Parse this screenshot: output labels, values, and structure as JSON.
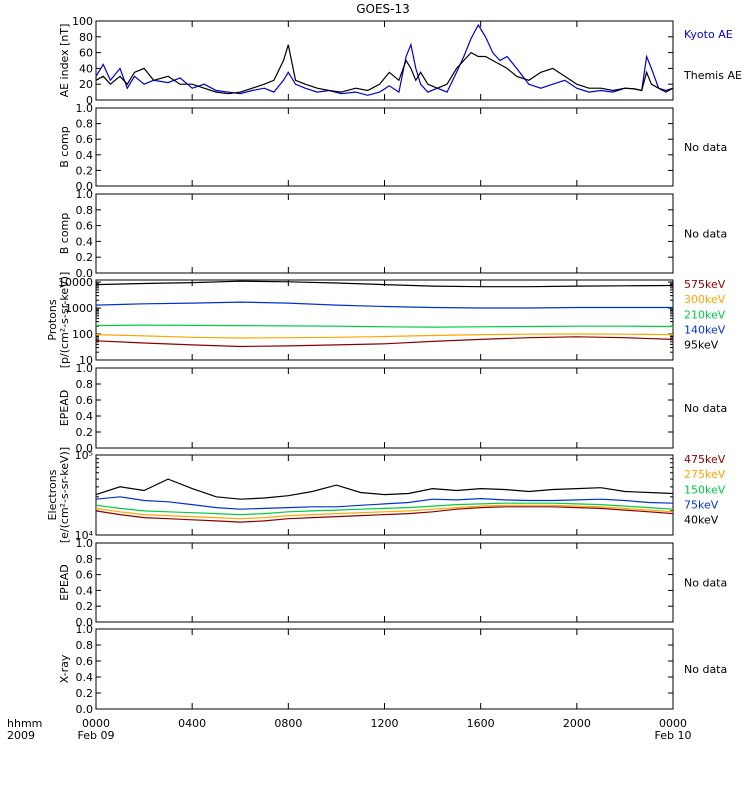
{
  "title": "GOES-13",
  "time_axis": {
    "corner_labels": [
      "hhmm",
      "2009"
    ],
    "ticks": [
      {
        "hour": 0,
        "label": "0000",
        "sublabel": "Feb 09"
      },
      {
        "hour": 4,
        "label": "0400",
        "sublabel": ""
      },
      {
        "hour": 8,
        "label": "0800",
        "sublabel": ""
      },
      {
        "hour": 12,
        "label": "1200",
        "sublabel": ""
      },
      {
        "hour": 16,
        "label": "1600",
        "sublabel": ""
      },
      {
        "hour": 20,
        "label": "2000",
        "sublabel": ""
      },
      {
        "hour": 24,
        "label": "0000",
        "sublabel": "Feb 10"
      }
    ],
    "range_hours": [
      0,
      24
    ]
  },
  "chart_data": [
    {
      "type": "line",
      "id": "ae",
      "ylabel": "AE index [nT]",
      "ylim": [
        0,
        100
      ],
      "yticks": [
        "0",
        "20",
        "40",
        "60",
        "80",
        "100"
      ],
      "scale": "linear",
      "series": [
        {
          "name": "Kyoto AE",
          "color": "#0000cc",
          "x": [
            0,
            0.3,
            0.6,
            1,
            1.3,
            1.6,
            2,
            2.4,
            3,
            3.5,
            4,
            4.5,
            5,
            5.5,
            6,
            6.5,
            7,
            7.4,
            7.8,
            8,
            8.3,
            8.7,
            9.2,
            9.7,
            10.2,
            10.8,
            11.3,
            11.8,
            12.2,
            12.6,
            12.9,
            13.1,
            13.3,
            13.5,
            13.8,
            14.2,
            14.6,
            15,
            15.3,
            15.6,
            15.9,
            16.2,
            16.5,
            16.8,
            17.1,
            17.5,
            18,
            18.5,
            19,
            19.5,
            20,
            20.5,
            21,
            21.5,
            22,
            22.4,
            22.7,
            22.9,
            23.1,
            23.4,
            23.7,
            24
          ],
          "y": [
            30,
            45,
            25,
            40,
            15,
            30,
            20,
            25,
            22,
            28,
            15,
            20,
            12,
            10,
            8,
            12,
            15,
            10,
            25,
            35,
            20,
            15,
            10,
            12,
            8,
            10,
            6,
            10,
            18,
            10,
            55,
            70,
            40,
            20,
            10,
            15,
            10,
            35,
            55,
            78,
            95,
            80,
            60,
            50,
            55,
            40,
            20,
            15,
            20,
            25,
            15,
            10,
            12,
            10,
            15,
            14,
            12,
            55,
            40,
            15,
            12,
            15
          ]
        },
        {
          "name": "Themis AE",
          "color": "#000000",
          "x": [
            0,
            0.3,
            0.6,
            1,
            1.3,
            1.6,
            2,
            2.4,
            3,
            3.5,
            4,
            4.5,
            5,
            5.5,
            6,
            6.5,
            7,
            7.4,
            7.8,
            8,
            8.3,
            8.7,
            9.2,
            9.7,
            10.2,
            10.8,
            11.3,
            11.8,
            12.2,
            12.6,
            12.9,
            13.1,
            13.3,
            13.5,
            13.8,
            14.2,
            14.6,
            15,
            15.3,
            15.6,
            15.9,
            16.2,
            16.5,
            16.8,
            17.1,
            17.5,
            18,
            18.5,
            19,
            19.5,
            20,
            20.5,
            21,
            21.5,
            22,
            22.4,
            22.7,
            22.9,
            23.1,
            23.4,
            23.7,
            24
          ],
          "y": [
            25,
            30,
            20,
            30,
            20,
            35,
            40,
            25,
            30,
            20,
            20,
            15,
            10,
            8,
            10,
            15,
            20,
            25,
            50,
            70,
            25,
            20,
            15,
            12,
            10,
            15,
            12,
            20,
            35,
            25,
            50,
            40,
            25,
            35,
            20,
            15,
            20,
            40,
            50,
            60,
            55,
            55,
            50,
            45,
            40,
            30,
            25,
            35,
            40,
            30,
            20,
            15,
            15,
            12,
            15,
            14,
            12,
            35,
            20,
            15,
            10,
            15
          ]
        }
      ]
    },
    {
      "type": "line",
      "id": "bcomp1",
      "ylabel": "B comp",
      "ylim": [
        0,
        1.0
      ],
      "yticks": [
        "0.0",
        "0.2",
        "0.4",
        "0.6",
        "0.8",
        "1.0"
      ],
      "scale": "linear",
      "series": [],
      "status_text": "No data"
    },
    {
      "type": "line",
      "id": "bcomp2",
      "ylabel": "B comp",
      "ylim": [
        0,
        1.0
      ],
      "yticks": [
        "0.0",
        "0.2",
        "0.4",
        "0.6",
        "0.8",
        "1.0"
      ],
      "scale": "linear",
      "series": [],
      "status_text": "No data"
    },
    {
      "type": "line",
      "id": "protons",
      "ylabel": "Protons",
      "ylabel2": "[p/(cm²-s-sr-keV)]",
      "ylim": [
        10,
        12000
      ],
      "scale": "log",
      "yticks": [
        {
          "value": 10,
          "label": "10"
        },
        {
          "value": 100,
          "label": "100"
        },
        {
          "value": 1000,
          "label": "1000"
        },
        {
          "value": 10000,
          "label": "10000"
        }
      ],
      "series": [
        {
          "name": "575keV",
          "color": "#8b0000",
          "x": [
            0,
            2,
            4,
            6,
            8,
            10,
            12,
            14,
            16,
            18,
            20,
            22,
            24
          ],
          "y": [
            55,
            45,
            38,
            33,
            35,
            38,
            42,
            52,
            62,
            72,
            78,
            72,
            62
          ]
        },
        {
          "name": "300keV",
          "color": "#ffa500",
          "x": [
            0,
            2,
            4,
            6,
            8,
            10,
            12,
            14,
            16,
            18,
            20,
            22,
            24
          ],
          "y": [
            95,
            85,
            75,
            70,
            72,
            75,
            80,
            88,
            95,
            98,
            100,
            98,
            95
          ]
        },
        {
          "name": "210keV",
          "color": "#00cc44",
          "x": [
            0,
            2,
            4,
            6,
            8,
            10,
            12,
            14,
            16,
            18,
            20,
            22,
            24
          ],
          "y": [
            210,
            220,
            215,
            210,
            205,
            200,
            190,
            185,
            190,
            195,
            200,
            200,
            195
          ]
        },
        {
          "name": "140keV",
          "color": "#0033cc",
          "x": [
            0,
            2,
            4,
            6,
            8,
            10,
            12,
            14,
            16,
            18,
            20,
            22,
            24
          ],
          "y": [
            1300,
            1450,
            1550,
            1700,
            1550,
            1300,
            1150,
            1050,
            1000,
            1000,
            1050,
            1050,
            1050
          ]
        },
        {
          "name": "95keV",
          "color": "#000000",
          "x": [
            0,
            2,
            4,
            6,
            8,
            10,
            12,
            14,
            16,
            18,
            20,
            22,
            24
          ],
          "y": [
            8000,
            8800,
            9500,
            10800,
            10200,
            9200,
            8000,
            7000,
            6600,
            6600,
            7000,
            7200,
            7400
          ]
        }
      ]
    },
    {
      "type": "line",
      "id": "epead1",
      "ylabel": "EPEAD",
      "ylim": [
        0,
        1.0
      ],
      "yticks": [
        "0.0",
        "0.2",
        "0.4",
        "0.6",
        "0.8",
        "1.0"
      ],
      "scale": "linear",
      "series": [],
      "status_text": "No data"
    },
    {
      "type": "line",
      "id": "electrons",
      "ylabel": "Electrons",
      "ylabel2": "[e/(cm²-s-sr-keV)]",
      "ylim": [
        10000,
        100000
      ],
      "scale": "log",
      "yticks": [
        {
          "value": 10000,
          "label": "10⁴"
        },
        {
          "value": 100000,
          "label": "10⁵"
        }
      ],
      "series": [
        {
          "name": "475keV",
          "color": "#8b0000",
          "x": [
            0,
            1,
            2,
            3,
            4,
            5,
            6,
            7,
            8,
            9,
            10,
            11,
            12,
            13,
            14,
            15,
            16,
            17,
            18,
            19,
            20,
            21,
            22,
            23,
            24
          ],
          "y": [
            20000,
            18000,
            16500,
            16000,
            15500,
            15000,
            14500,
            15000,
            16000,
            16500,
            17000,
            17500,
            18000,
            18500,
            19500,
            21000,
            22000,
            22500,
            22500,
            22500,
            22000,
            21500,
            20500,
            19500,
            18500
          ]
        },
        {
          "name": "275keV",
          "color": "#ffa500",
          "x": [
            0,
            1,
            2,
            3,
            4,
            5,
            6,
            7,
            8,
            9,
            10,
            11,
            12,
            13,
            14,
            15,
            16,
            17,
            18,
            19,
            20,
            21,
            22,
            23,
            24
          ],
          "y": [
            21500,
            19500,
            18000,
            17500,
            17000,
            16500,
            16000,
            16500,
            17500,
            18000,
            18500,
            19000,
            19500,
            20000,
            21000,
            22000,
            23000,
            23500,
            23500,
            23500,
            23000,
            22500,
            21500,
            20500,
            19500
          ]
        },
        {
          "name": "150keV",
          "color": "#00cc44",
          "x": [
            0,
            1,
            2,
            3,
            4,
            5,
            6,
            7,
            8,
            9,
            10,
            11,
            12,
            13,
            14,
            15,
            16,
            17,
            18,
            19,
            20,
            21,
            22,
            23,
            24
          ],
          "y": [
            23500,
            21500,
            20000,
            19500,
            19000,
            18500,
            18000,
            18500,
            19500,
            20000,
            20500,
            21000,
            21500,
            22000,
            23000,
            24000,
            24500,
            25000,
            25000,
            25000,
            24500,
            24000,
            23000,
            22000,
            21000
          ]
        },
        {
          "name": "75keV",
          "color": "#0033cc",
          "x": [
            0,
            1,
            2,
            3,
            4,
            5,
            6,
            7,
            8,
            9,
            10,
            11,
            12,
            13,
            14,
            15,
            16,
            17,
            18,
            19,
            20,
            21,
            22,
            23,
            24
          ],
          "y": [
            28000,
            30000,
            27000,
            26000,
            24000,
            22000,
            21000,
            21500,
            22000,
            22500,
            22500,
            23500,
            24500,
            25500,
            28000,
            27500,
            28500,
            27500,
            27000,
            27000,
            27500,
            28000,
            27000,
            25500,
            25000
          ]
        },
        {
          "name": "40keV",
          "color": "#000000",
          "x": [
            0,
            1,
            2,
            3,
            4,
            5,
            6,
            7,
            8,
            9,
            10,
            11,
            12,
            13,
            14,
            15,
            16,
            17,
            18,
            19,
            20,
            21,
            22,
            23,
            24
          ],
          "y": [
            32000,
            40000,
            36000,
            50000,
            38000,
            30000,
            28000,
            29000,
            31000,
            35000,
            42000,
            34000,
            32000,
            33000,
            38000,
            36000,
            38000,
            37000,
            35000,
            37000,
            38000,
            39000,
            35000,
            34000,
            33000
          ]
        }
      ]
    },
    {
      "type": "line",
      "id": "epead2",
      "ylabel": "EPEAD",
      "ylim": [
        0,
        1.0
      ],
      "yticks": [
        "0.0",
        "0.2",
        "0.4",
        "0.6",
        "0.8",
        "1.0"
      ],
      "scale": "linear",
      "series": [],
      "status_text": "No data"
    },
    {
      "type": "line",
      "id": "xray",
      "ylabel": "X-ray",
      "ylim": [
        0,
        1.0
      ],
      "yticks": [
        "0.0",
        "0.2",
        "0.4",
        "0.6",
        "0.8",
        "1.0"
      ],
      "scale": "linear",
      "series": [],
      "status_text": "No data"
    }
  ]
}
